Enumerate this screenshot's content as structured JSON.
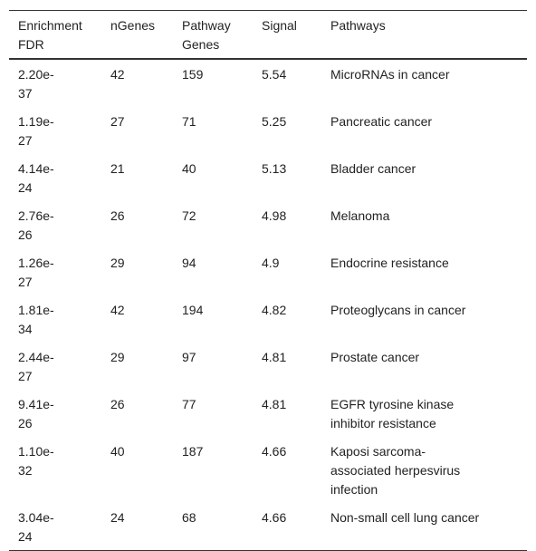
{
  "table": {
    "header": [
      "Enrichment FDR",
      "nGenes",
      "Pathway Genes",
      "Signal",
      "Pathways"
    ],
    "rows": [
      [
        "2.20e-37",
        42,
        159,
        5.54,
        "MicroRNAs in cancer"
      ],
      [
        "1.19e-27",
        27,
        71,
        5.25,
        "Pancreatic cancer"
      ],
      [
        "4.14e-24",
        21,
        40,
        5.13,
        "Bladder cancer"
      ],
      [
        "2.76e-26",
        26,
        72,
        4.98,
        "Melanoma"
      ],
      [
        "1.26e-27",
        29,
        94,
        4.9,
        "Endocrine resistance"
      ],
      [
        "1.81e-34",
        42,
        194,
        4.82,
        "Proteoglycans in cancer"
      ],
      [
        "2.44e-27",
        29,
        97,
        4.81,
        "Prostate cancer"
      ],
      [
        "9.41e-26",
        26,
        77,
        4.81,
        "EGFR tyrosine kinase inhibitor resistance"
      ],
      [
        "1.10e-32",
        40,
        187,
        4.66,
        "Kaposi sarcoma-associated herpesvirus infection"
      ],
      [
        "3.04e-24",
        24,
        68,
        4.66,
        "Non-small cell lung cancer"
      ]
    ]
  }
}
